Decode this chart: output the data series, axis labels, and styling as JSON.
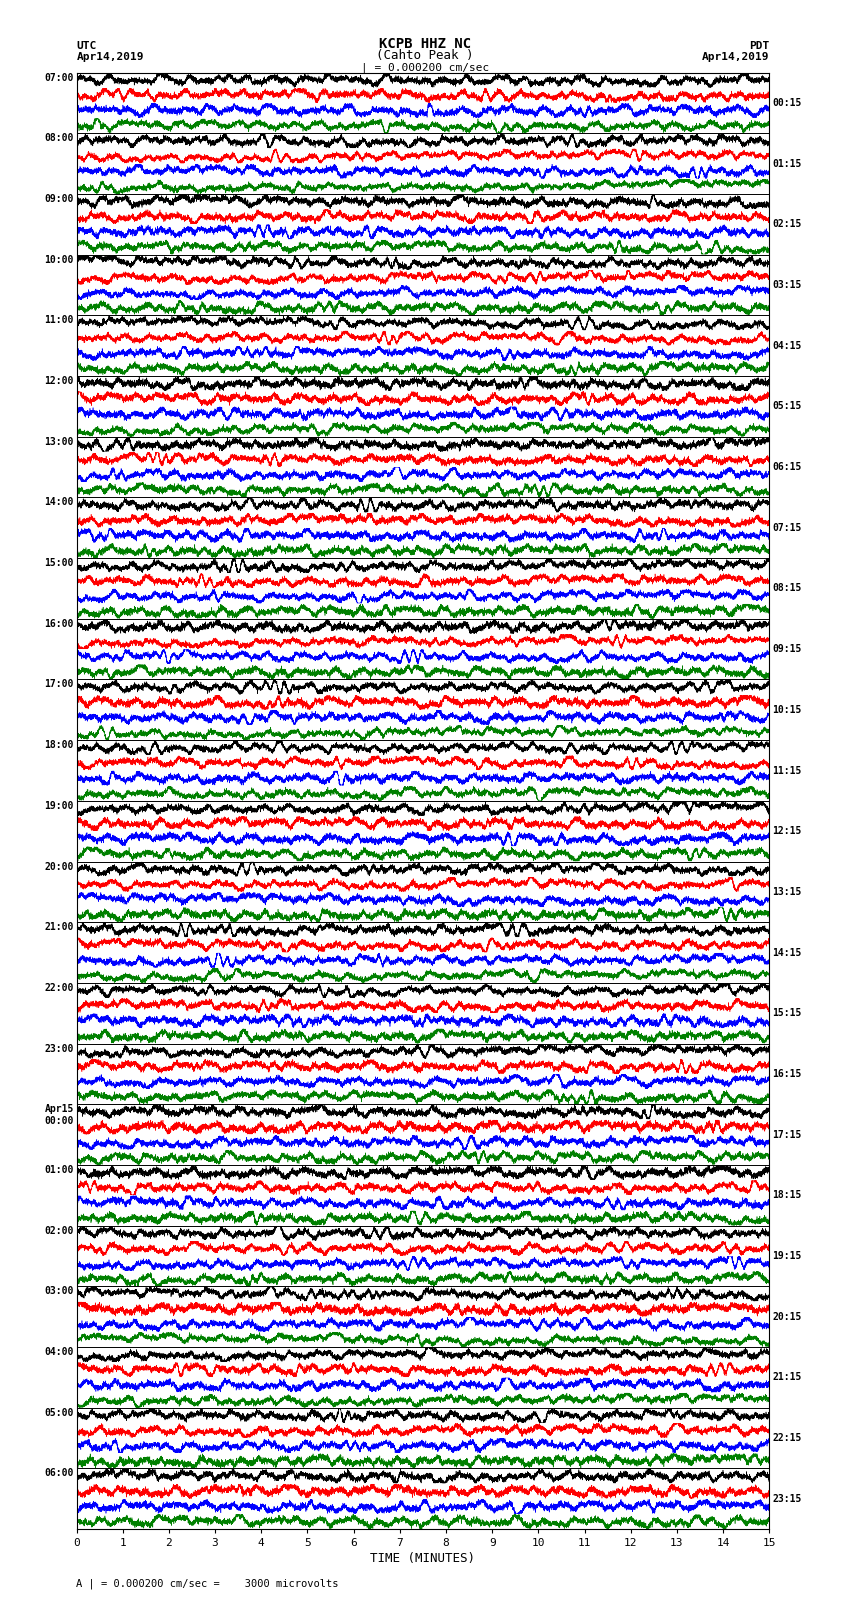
{
  "title_line1": "KCPB HHZ NC",
  "title_line2": "(Cahto Peak )",
  "scale_label": "| = 0.000200 cm/sec",
  "utc_label": "UTC",
  "utc_date": "Apr14,2019",
  "pdt_label": "PDT",
  "pdt_date": "Apr14,2019",
  "bottom_label": "A | = 0.000200 cm/sec =    3000 microvolts",
  "xlabel": "TIME (MINUTES)",
  "left_times": [
    "07:00",
    "08:00",
    "09:00",
    "10:00",
    "11:00",
    "12:00",
    "13:00",
    "14:00",
    "15:00",
    "16:00",
    "17:00",
    "18:00",
    "19:00",
    "20:00",
    "21:00",
    "22:00",
    "23:00",
    "Apr15\n00:00",
    "01:00",
    "02:00",
    "03:00",
    "04:00",
    "05:00",
    "06:00"
  ],
  "right_times": [
    "00:15",
    "01:15",
    "02:15",
    "03:15",
    "04:15",
    "05:15",
    "06:15",
    "07:15",
    "08:15",
    "09:15",
    "10:15",
    "11:15",
    "12:15",
    "13:15",
    "14:15",
    "15:15",
    "16:15",
    "17:15",
    "18:15",
    "19:15",
    "20:15",
    "21:15",
    "22:15",
    "23:15"
  ],
  "n_rows": 24,
  "traces_per_row": 4,
  "colors": [
    "black",
    "red",
    "blue",
    "green"
  ],
  "bg_color": "white",
  "fig_width": 8.5,
  "fig_height": 16.13,
  "xlim": [
    0,
    15
  ],
  "xticks": [
    0,
    1,
    2,
    3,
    4,
    5,
    6,
    7,
    8,
    9,
    10,
    11,
    12,
    13,
    14,
    15
  ]
}
